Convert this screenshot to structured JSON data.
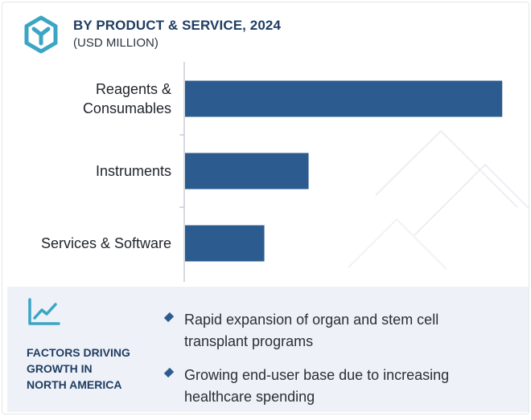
{
  "header": {
    "title": "BY PRODUCT & SERVICE, 2024",
    "subtitle": "(USD MILLION)"
  },
  "colors": {
    "bar": "#2c5c8f",
    "accent_teal": "#3aa6c4",
    "heading_navy": "#1f3d63",
    "panel_bg": "#eef1f7"
  },
  "icons": {
    "logo": "hexagon-y-logo-icon",
    "trend": "trend-up-chart-icon",
    "bullet": "diamond-bullet-icon"
  },
  "chart_data": {
    "type": "bar",
    "orientation": "horizontal",
    "title": "BY PRODUCT & SERVICE, 2024",
    "unit": "(USD MILLION)",
    "categories": [
      "Reagents &\nConsumables",
      "Instruments",
      "Services & Software"
    ],
    "values": [
      380,
      148,
      95
    ],
    "xlim": [
      0,
      400
    ],
    "grid": false,
    "legend": "none"
  },
  "factors": {
    "heading": "FACTORS DRIVING\nGROWTH IN\nNORTH AMERICA",
    "items": [
      "Rapid expansion of organ and stem cell transplant programs",
      "Growing end-user base due to increasing healthcare spending"
    ]
  }
}
